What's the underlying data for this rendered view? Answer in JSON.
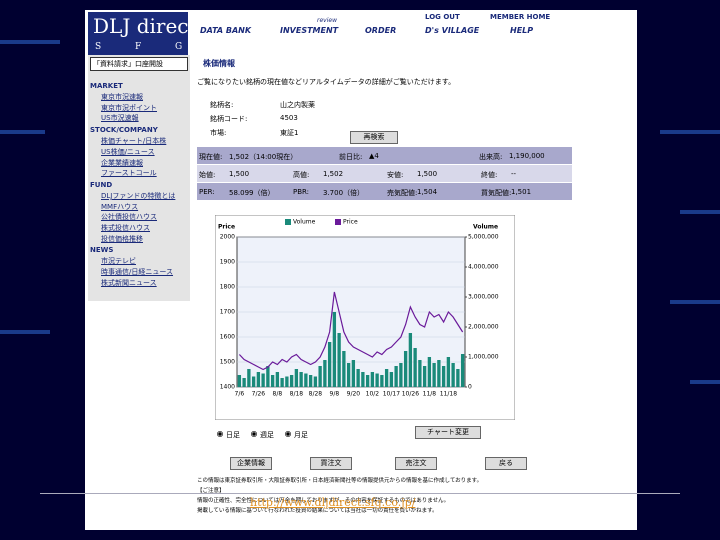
{
  "header": {
    "logo": "DLJ direct.",
    "logo_sub": [
      "S",
      "F",
      "G"
    ],
    "nav": [
      "DATA BANK",
      "INVESTMENT",
      "ORDER",
      "D's VILLAGE",
      "HELP"
    ],
    "nav_note": "review",
    "top_links": [
      "LOG OUT",
      "MEMBER HOME"
    ]
  },
  "sidebar": {
    "banner": "「資料請求」口座開設",
    "sections": [
      {
        "title": "MARKET",
        "items": [
          "東京市況速報",
          "東京市況ポイント",
          "US市況速報"
        ]
      },
      {
        "title": "STOCK/COMPANY",
        "items": [
          "株価チャート/日本株",
          "US株価/ニュース",
          "企業業績速報",
          "ファーストコール"
        ]
      },
      {
        "title": "FUND",
        "items": [
          "DLJファンドの特徴とは",
          "MMFハウス",
          "公社債投信ハウス",
          "株式投信ハウス",
          "投信価格推移"
        ]
      },
      {
        "title": "NEWS",
        "items": [
          "市況テレビ",
          "時事通信/日経ニュース",
          "株式新聞ニュース"
        ]
      }
    ]
  },
  "main": {
    "title": "株価情報",
    "intro": "ご覧になりたい銘柄の現在値などリアルタイムデータの詳細がご覧いただけます。",
    "fields": [
      {
        "label": "銘柄名:",
        "value": "山之内製薬"
      },
      {
        "label": "銘柄コード:",
        "value": "4503"
      },
      {
        "label": "市場:",
        "value": "東証1"
      }
    ],
    "lookup_button": "再検索",
    "quote_rows": [
      [
        {
          "label": "現在値:",
          "value": "1,502（14:00現在）"
        },
        {
          "label": "前日比:",
          "value": "▲4"
        },
        {
          "label": "出来高:",
          "value": "1,190,000"
        }
      ],
      [
        {
          "label": "始値:",
          "value": "1,500"
        },
        {
          "label": "高値:",
          "value": "1,502"
        },
        {
          "label": "安値:",
          "value": "1,500"
        },
        {
          "label": "終値:",
          "value": "--"
        }
      ],
      [
        {
          "label": "PER:",
          "value": "58.099（倍）"
        },
        {
          "label": "PBR:",
          "value": "3.700（倍）"
        },
        {
          "label": "売気配値:",
          "value": "1,504"
        },
        {
          "label": "買気配値:",
          "value": "1,501"
        }
      ]
    ],
    "chart": {
      "type": "line",
      "y_label": "Price",
      "y2_label": "Volume",
      "categories": [
        "7/6",
        null,
        null,
        null,
        "7/26",
        null,
        null,
        null,
        "8/8",
        null,
        null,
        null,
        "8/18",
        null,
        null,
        null,
        "8/28",
        null,
        null,
        null,
        "9/8",
        null,
        null,
        null,
        "9/20",
        null,
        null,
        null,
        "10/2",
        null,
        null,
        null,
        "10/17",
        null,
        null,
        null,
        "10/26",
        null,
        null,
        null,
        "11/8",
        null,
        null,
        null,
        "11/18",
        null,
        null,
        null
      ],
      "series": [
        {
          "name": "Volume",
          "color": "#1a8a7a",
          "axis": "y2",
          "values": [
            400000,
            300000,
            600000,
            350000,
            500000,
            450000,
            700000,
            400000,
            500000,
            300000,
            350000,
            400000,
            600000,
            500000,
            450000,
            400000,
            350000,
            700000,
            900000,
            1500000,
            2500000,
            1800000,
            1200000,
            800000,
            900000,
            600000,
            500000,
            400000,
            500000,
            450000,
            400000,
            600000,
            500000,
            700000,
            800000,
            1200000,
            1800000,
            1300000,
            900000,
            700000,
            1000000,
            800000,
            900000,
            700000,
            1000000,
            800000,
            600000,
            1100000
          ]
        },
        {
          "name": "Price",
          "color": "#6a1a9a",
          "values": [
            1530,
            1510,
            1500,
            1490,
            1480,
            1470,
            1480,
            1500,
            1490,
            1510,
            1500,
            1520,
            1530,
            1510,
            1500,
            1490,
            1500,
            1520,
            1560,
            1620,
            1780,
            1700,
            1620,
            1580,
            1560,
            1550,
            1540,
            1530,
            1520,
            1540,
            1530,
            1550,
            1560,
            1580,
            1600,
            1650,
            1720,
            1680,
            1650,
            1640,
            1700,
            1680,
            1690,
            1660,
            1700,
            1680,
            1650,
            1620
          ]
        }
      ],
      "ylim": [
        1400,
        2000
      ],
      "yticks": [
        1400,
        1500,
        1600,
        1700,
        1800,
        1900,
        2000
      ],
      "y2lim": [
        0,
        5000000
      ],
      "y2ticks": [
        {
          "value": 0,
          "label": "0"
        },
        {
          "value": 1000000,
          "label": "1,000,000"
        },
        {
          "value": 2000000,
          "label": "2,000,000"
        },
        {
          "value": 3000000,
          "label": "3,000,000"
        },
        {
          "value": 4000000,
          "label": "4,000,000"
        },
        {
          "value": 5000000,
          "label": "5,000,000"
        }
      ],
      "grid": true
    },
    "periods": [
      "日足",
      "週足",
      "月足"
    ],
    "chart_button": "チャート変更",
    "buttons": [
      "企業情報",
      "買注文",
      "売注文",
      "戻る"
    ],
    "footer": [
      "この情報は東京証券取引所・大阪証券取引所・日本経済新聞社等の情報提供元からの情報を基に作成しております。",
      "【ご注意】",
      "情報の正確性、完全性については万全を期しておりますが、その内容を保証するものではありません。",
      "掲載している情報に基づいて行なわれた投資の結果については当社は一切の責任を負いかねます。"
    ]
  },
  "overlay_url": "http://www.dljdirect.sfg.co.jp/"
}
